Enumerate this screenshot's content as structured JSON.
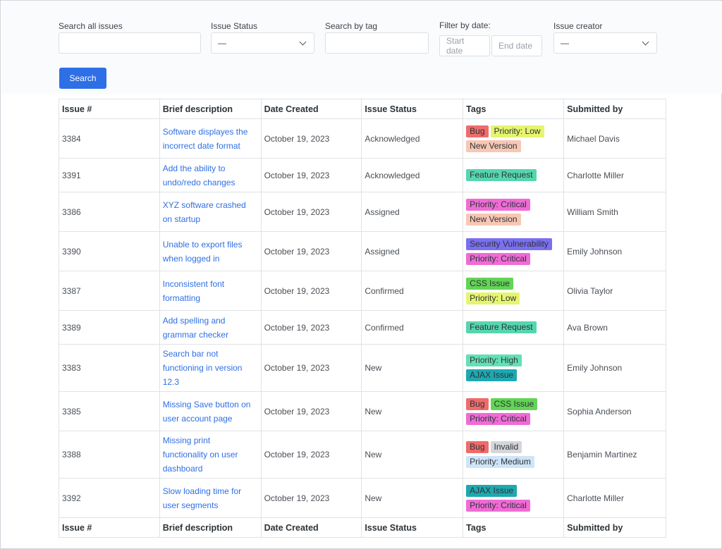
{
  "filters": {
    "search_all_label": "Search all issues",
    "status_label": "Issue Status",
    "status_value": "—",
    "tag_label": "Search by tag",
    "date_label": "Filter by date:",
    "start_placeholder": "Start date",
    "end_placeholder": "End date",
    "creator_label": "Issue creator",
    "creator_value": "—",
    "search_button": "Search"
  },
  "table": {
    "headers": [
      "Issue #",
      "Brief description",
      "Date Created",
      "Issue Status",
      "Tags",
      "Submitted by"
    ],
    "rows": [
      {
        "id": "3384",
        "desc": [
          "Software displayes the",
          "incorrect date format"
        ],
        "date": "October 19, 2023",
        "status": "Acknowledged",
        "tags": [
          [
            "Bug",
            "Priority: Low"
          ],
          [
            "New Version"
          ]
        ],
        "by": "Michael Davis"
      },
      {
        "id": "3391",
        "desc": [
          "Add the ability to",
          "undo/redo changes"
        ],
        "date": "October 19, 2023",
        "status": "Acknowledged",
        "tags": [
          [
            "Feature Request"
          ]
        ],
        "by": "Charlotte Miller"
      },
      {
        "id": "3386",
        "desc": [
          "XYZ software crashed",
          "on startup"
        ],
        "date": "October 19, 2023",
        "status": "Assigned",
        "tags": [
          [
            "Priority: Critical"
          ],
          [
            "New Version"
          ]
        ],
        "by": "William Smith"
      },
      {
        "id": "3390",
        "desc": [
          "Unable to export files",
          "when logged in"
        ],
        "date": "October 19, 2023",
        "status": "Assigned",
        "tags": [
          [
            "Security Vulnerability"
          ],
          [
            "Priority: Critical"
          ]
        ],
        "by": "Emily Johnson"
      },
      {
        "id": "3387",
        "desc": [
          "Inconsistent font",
          "formatting"
        ],
        "date": "October 19, 2023",
        "status": "Confirmed",
        "tags": [
          [
            "CSS Issue"
          ],
          [
            "Priority: Low"
          ]
        ],
        "by": "Olivia Taylor"
      },
      {
        "id": "3389",
        "desc": [
          "Add spelling and",
          "grammar checker"
        ],
        "date": "October 19, 2023",
        "status": "Confirmed",
        "tags": [
          [
            "Feature Request"
          ]
        ],
        "by": "Ava Brown"
      },
      {
        "id": "3383",
        "desc": [
          "Search bar not",
          "functioning in version",
          "12.3"
        ],
        "date": "October 19, 2023",
        "status": "New",
        "tags": [
          [
            "Priority: High"
          ],
          [
            "AJAX Issue"
          ]
        ],
        "by": "Emily Johnson"
      },
      {
        "id": "3385",
        "desc": [
          "Missing Save button on",
          "user account page"
        ],
        "date": "October 19, 2023",
        "status": "New",
        "tags": [
          [
            "Bug",
            "CSS Issue"
          ],
          [
            "Priority: Critical"
          ]
        ],
        "by": "Sophia Anderson"
      },
      {
        "id": "3388",
        "desc": [
          "Missing print",
          "functionality on user",
          "dashboard"
        ],
        "date": "October 19, 2023",
        "status": "New",
        "tags": [
          [
            "Bug",
            "Invalid"
          ],
          [
            "Priority: Medium"
          ]
        ],
        "by": "Benjamin Martinez"
      },
      {
        "id": "3392",
        "desc": [
          "Slow loading time for",
          "user segments"
        ],
        "date": "October 19, 2023",
        "status": "New",
        "tags": [
          [
            "AJAX Issue"
          ],
          [
            "Priority: Critical"
          ]
        ],
        "by": "Charlotte Miller"
      }
    ]
  },
  "tag_colors": {
    "Bug": "#f06b6b",
    "Priority: Low": "#e6f56e",
    "New Version": "#f8c7b4",
    "Feature Request": "#56d6ae",
    "Priority: Critical": "#f06bd6",
    "Security Vulnerability": "#7b6ff0",
    "CSS Issue": "#63d456",
    "Priority: High": "#63e0b4",
    "AJAX Issue": "#1fa8b0",
    "Invalid": "#d4d6d9",
    "Priority: Medium": "#cfe4f8"
  }
}
